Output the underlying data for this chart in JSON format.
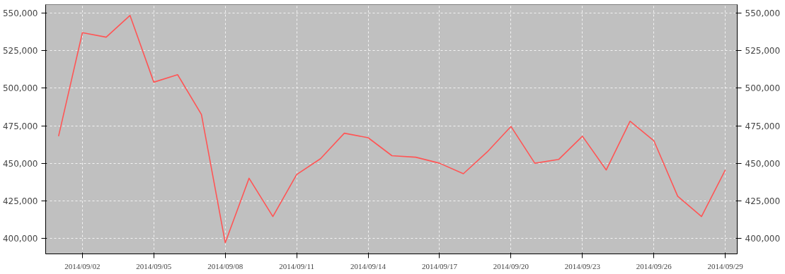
{
  "chart_data": {
    "type": "line",
    "x": [
      "2014-09-01",
      "2014-09-02",
      "2014-09-03",
      "2014-09-04",
      "2014-09-05",
      "2014-09-06",
      "2014-09-07",
      "2014-09-08",
      "2014-09-09",
      "2014-09-10",
      "2014-09-11",
      "2014-09-12",
      "2014-09-13",
      "2014-09-14",
      "2014-09-15",
      "2014-09-16",
      "2014-09-17",
      "2014-09-18",
      "2014-09-19",
      "2014-09-20",
      "2014-09-21",
      "2014-09-22",
      "2014-09-23",
      "2014-09-24",
      "2014-09-25",
      "2014-09-26",
      "2014-09-27",
      "2014-09-28",
      "2014-09-29"
    ],
    "series": [
      {
        "color": "#ff5555",
        "values": [
          468000,
          537000,
          534000,
          548500,
          504000,
          509000,
          482500,
          397000,
          440000,
          414500,
          442500,
          453000,
          470000,
          467000,
          455000,
          454000,
          450000,
          443000,
          457500,
          474500,
          450000,
          452500,
          468000,
          445500,
          478000,
          465000,
          428000,
          414500,
          445500
        ]
      }
    ],
    "xlim": [
      "2014-08-31T11:00",
      "2014-09-29T12:00"
    ],
    "xticks": [
      {
        "value": "2014-09-02",
        "label": "2014/09/02"
      },
      {
        "value": "2014-09-05",
        "label": "2014/09/05"
      },
      {
        "value": "2014-09-08",
        "label": "2014/09/08"
      },
      {
        "value": "2014-09-11",
        "label": "2014/09/11"
      },
      {
        "value": "2014-09-14",
        "label": "2014/09/14"
      },
      {
        "value": "2014-09-17",
        "label": "2014/09/17"
      },
      {
        "value": "2014-09-20",
        "label": "2014/09/20"
      },
      {
        "value": "2014-09-23",
        "label": "2014/09/23"
      },
      {
        "value": "2014-09-26",
        "label": "2014/09/26"
      },
      {
        "value": "2014-09-29",
        "label": "2014/09/29"
      }
    ],
    "ylim": [
      389600,
      555700
    ],
    "yticks": [
      {
        "value": 400000,
        "label": "400,000"
      },
      {
        "value": 425000,
        "label": "425,000"
      },
      {
        "value": 450000,
        "label": "450,000"
      },
      {
        "value": 475000,
        "label": "475,000"
      },
      {
        "value": 500000,
        "label": "500,000"
      },
      {
        "value": 525000,
        "label": "525,000"
      },
      {
        "value": 550000,
        "label": "550,000"
      }
    ],
    "y2lim": [
      389600,
      555700
    ],
    "y2ticks": [
      {
        "value": 400000,
        "label": "400,000"
      },
      {
        "value": 425000,
        "label": "425,000"
      },
      {
        "value": 450000,
        "label": "450,000"
      },
      {
        "value": 475000,
        "label": "475,000"
      },
      {
        "value": 500000,
        "label": "500,000"
      },
      {
        "value": 525000,
        "label": "525,000"
      },
      {
        "value": 550000,
        "label": "550,000"
      }
    ],
    "grid": true,
    "line_style": "solid"
  }
}
